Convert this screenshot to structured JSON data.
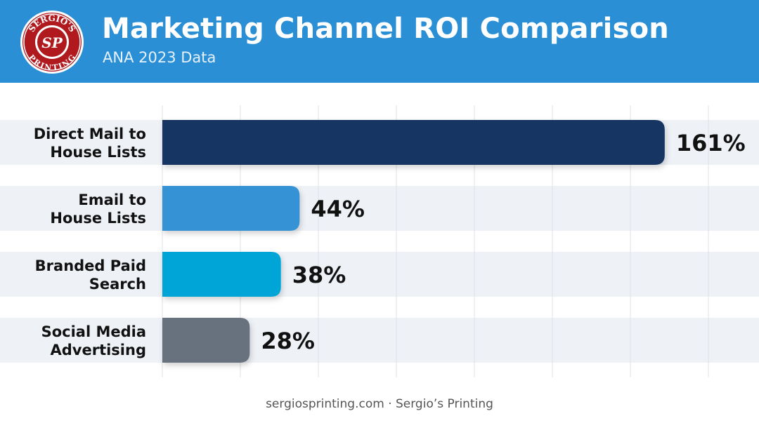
{
  "header": {
    "title": "Marketing Channel ROI Comparison",
    "subtitle": "ANA 2023 Data",
    "logo": {
      "line1": "SERGIO'S",
      "monogram": "SP",
      "line2": "PRINTING"
    }
  },
  "colors": {
    "header_bg": "#2b8fd6",
    "bars": [
      "#153563",
      "#3592d5",
      "#06a5d8",
      "#68727e"
    ],
    "row_bg": "#eef2f7",
    "gridline": "#dde2e8"
  },
  "chart_data": {
    "type": "bar",
    "orientation": "horizontal",
    "title": "Marketing Channel ROI Comparison",
    "subtitle": "ANA 2023 Data",
    "categories": [
      [
        "Direct Mail to",
        "House Lists"
      ],
      [
        "Email to",
        "House Lists"
      ],
      [
        "Branded Paid",
        "Search"
      ],
      [
        "Social Media",
        "Advertising"
      ]
    ],
    "values": [
      161,
      44,
      38,
      28
    ],
    "data_labels": [
      "161%",
      "44%",
      "38%",
      "28%"
    ],
    "xlim": [
      0,
      175
    ],
    "grid": true,
    "legend": "none"
  },
  "footer": {
    "text": "sergiosprinting.com · Sergio’s Printing"
  }
}
